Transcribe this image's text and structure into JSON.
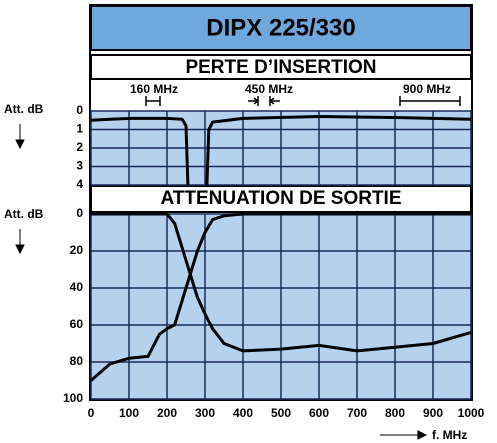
{
  "title": "DIPX 225/330",
  "bands": [
    "PERTE D’INSERTION",
    "ATTENUATION DE SORTIE"
  ],
  "markers": [
    "160 MHz",
    "450 MHz",
    "900 MHz"
  ],
  "x_label": "f. MHz",
  "chart_data": [
    {
      "type": "line",
      "ylabel": "Att. dB",
      "xlim": [
        0,
        1000
      ],
      "ylim": [
        4,
        0
      ],
      "xticks": [
        0,
        100,
        200,
        300,
        400,
        500,
        600,
        700,
        800,
        900,
        1000
      ],
      "yticks": [
        0,
        1,
        2,
        3,
        4
      ],
      "grid": true,
      "background": "#b4d2ee",
      "x": [
        0,
        50,
        100,
        200,
        240,
        250,
        255,
        280,
        305,
        310,
        320,
        400,
        600,
        800,
        1000
      ],
      "series": [
        {
          "color": "#000000",
          "values": [
            0.5,
            0.45,
            0.4,
            0.4,
            0.45,
            0.8,
            4,
            null,
            4,
            1,
            0.6,
            0.4,
            0.3,
            0.35,
            0.45
          ]
        }
      ]
    },
    {
      "type": "line",
      "ylabel": "Att. dB",
      "xlim": [
        0,
        1000
      ],
      "ylim": [
        100,
        0
      ],
      "xticks": [
        0,
        100,
        200,
        300,
        400,
        500,
        600,
        700,
        800,
        900,
        1000
      ],
      "yticks": [
        0,
        20,
        40,
        60,
        80,
        100
      ],
      "grid": true,
      "background": "#b4d2ee",
      "x": [
        0,
        50,
        100,
        150,
        180,
        200,
        220,
        250,
        280,
        300,
        320,
        350,
        400,
        500,
        600,
        700,
        800,
        900,
        1000
      ],
      "series": [
        {
          "color": "#000000",
          "values": [
            0,
            0,
            0,
            0,
            0,
            0,
            5,
            25,
            45,
            54,
            62,
            70,
            74,
            73,
            71,
            74,
            72,
            70,
            64
          ]
        },
        {
          "color": "#000000",
          "values": [
            90,
            81,
            78,
            77,
            65,
            62,
            60,
            40,
            20,
            10,
            3,
            1,
            0,
            0,
            0,
            0,
            0,
            0,
            0
          ]
        }
      ]
    }
  ]
}
